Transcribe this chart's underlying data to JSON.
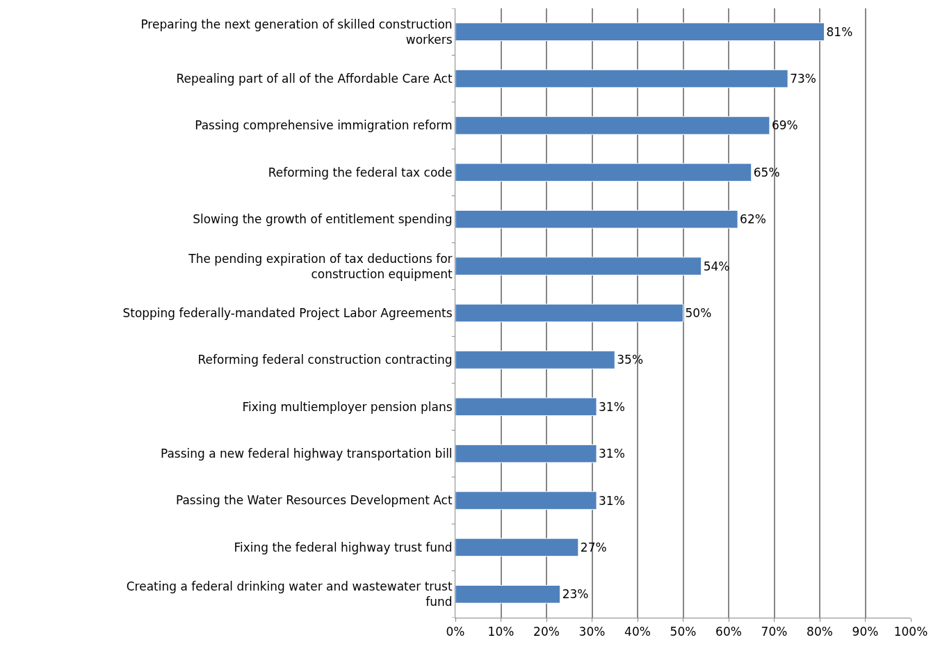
{
  "chart_data": {
    "type": "bar",
    "orientation": "horizontal",
    "categories": [
      "Preparing the next generation of skilled construction workers",
      "Repealing part of all of the Affordable Care Act",
      "Passing comprehensive immigration reform",
      "Reforming the federal tax code",
      "Slowing the growth of entitlement spending",
      "The pending expiration of tax deductions for construction equipment",
      "Stopping federally-mandated Project Labor Agreements",
      "Reforming federal construction contracting",
      "Fixing multiemployer pension plans",
      "Passing a new federal highway transportation bill",
      "Passing the Water Resources Development Act",
      "Fixing the federal highway trust fund",
      "Creating a federal drinking water and wastewater trust fund"
    ],
    "values": [
      81,
      73,
      69,
      65,
      62,
      54,
      50,
      35,
      31,
      31,
      31,
      27,
      23
    ],
    "value_labels": [
      "81%",
      "73%",
      "69%",
      "65%",
      "62%",
      "54%",
      "50%",
      "35%",
      "31%",
      "31%",
      "31%",
      "27%",
      "23%"
    ],
    "color": "#4f81bd",
    "xlim": [
      0,
      100
    ],
    "xticks": [
      {
        "value": 0,
        "label": "0%"
      },
      {
        "value": 10,
        "label": "10%"
      },
      {
        "value": 20,
        "label": "20%"
      },
      {
        "value": 30,
        "label": "30%"
      },
      {
        "value": 40,
        "label": "40%"
      },
      {
        "value": 50,
        "label": "50%"
      },
      {
        "value": 60,
        "label": "60%"
      },
      {
        "value": 70,
        "label": "70%"
      },
      {
        "value": 80,
        "label": "80%"
      },
      {
        "value": 90,
        "label": "90%"
      },
      {
        "value": 100,
        "label": "100%"
      }
    ],
    "grid": "x",
    "legend": false
  }
}
